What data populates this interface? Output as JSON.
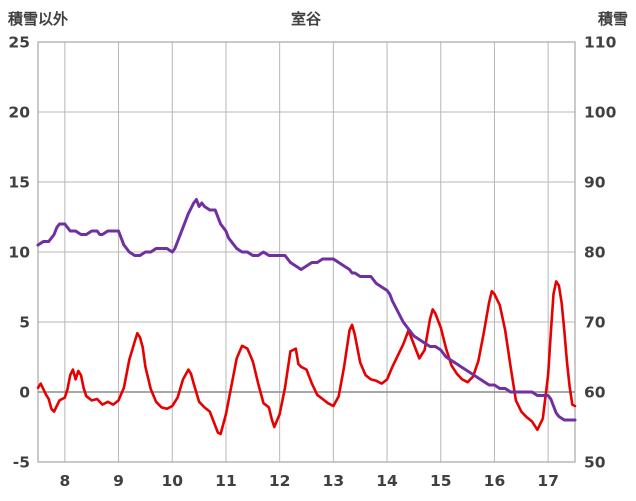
{
  "header": {
    "left_axis_title": "積雪以外",
    "chart_title": "室谷",
    "right_axis_title": "積雪"
  },
  "colors": {
    "red_series": "#e60000",
    "purple_series": "#7030a0",
    "grid": "#b7b7b7",
    "border": "#a6a6a6",
    "zero_line": "#8c8c8c",
    "text": "#404040"
  },
  "chart_data": {
    "type": "line",
    "title": "室谷",
    "xlim": [
      7.5,
      17.5
    ],
    "x_ticks": [
      8,
      9,
      10,
      11,
      12,
      13,
      14,
      15,
      16,
      17
    ],
    "grid": true,
    "legend": "none",
    "left_axis": {
      "label": "積雪以外",
      "lim": [
        -5,
        25
      ],
      "ticks": [
        -5,
        0,
        5,
        10,
        15,
        20,
        25
      ]
    },
    "right_axis": {
      "label": "積雪",
      "lim": [
        50,
        110
      ],
      "ticks": [
        50,
        60,
        70,
        80,
        90,
        100,
        110
      ]
    },
    "series": [
      {
        "name": "red-left-axis-series",
        "axis": "left",
        "color": "#e60000",
        "width": 2.6,
        "points": [
          [
            7.5,
            0.3
          ],
          [
            7.55,
            0.6
          ],
          [
            7.6,
            0.2
          ],
          [
            7.65,
            -0.2
          ],
          [
            7.7,
            -0.5
          ],
          [
            7.75,
            -1.2
          ],
          [
            7.8,
            -1.4
          ],
          [
            7.85,
            -1.0
          ],
          [
            7.9,
            -0.6
          ],
          [
            8.0,
            -0.4
          ],
          [
            8.05,
            0.2
          ],
          [
            8.1,
            1.2
          ],
          [
            8.15,
            1.6
          ],
          [
            8.2,
            0.9
          ],
          [
            8.25,
            1.5
          ],
          [
            8.3,
            1.2
          ],
          [
            8.35,
            0.3
          ],
          [
            8.4,
            -0.3
          ],
          [
            8.5,
            -0.6
          ],
          [
            8.6,
            -0.5
          ],
          [
            8.7,
            -0.9
          ],
          [
            8.8,
            -0.7
          ],
          [
            8.9,
            -0.9
          ],
          [
            9.0,
            -0.6
          ],
          [
            9.1,
            0.3
          ],
          [
            9.2,
            2.3
          ],
          [
            9.3,
            3.6
          ],
          [
            9.35,
            4.2
          ],
          [
            9.4,
            3.9
          ],
          [
            9.45,
            3.2
          ],
          [
            9.5,
            1.8
          ],
          [
            9.6,
            0.2
          ],
          [
            9.7,
            -0.7
          ],
          [
            9.8,
            -1.1
          ],
          [
            9.9,
            -1.2
          ],
          [
            10.0,
            -1.0
          ],
          [
            10.1,
            -0.4
          ],
          [
            10.2,
            0.9
          ],
          [
            10.3,
            1.6
          ],
          [
            10.35,
            1.3
          ],
          [
            10.4,
            0.6
          ],
          [
            10.5,
            -0.7
          ],
          [
            10.6,
            -1.1
          ],
          [
            10.7,
            -1.4
          ],
          [
            10.8,
            -2.4
          ],
          [
            10.85,
            -2.9
          ],
          [
            10.9,
            -3.0
          ],
          [
            11.0,
            -1.6
          ],
          [
            11.1,
            0.4
          ],
          [
            11.2,
            2.4
          ],
          [
            11.3,
            3.3
          ],
          [
            11.4,
            3.1
          ],
          [
            11.5,
            2.2
          ],
          [
            11.6,
            0.6
          ],
          [
            11.7,
            -0.8
          ],
          [
            11.8,
            -1.1
          ],
          [
            11.85,
            -1.9
          ],
          [
            11.9,
            -2.5
          ],
          [
            12.0,
            -1.6
          ],
          [
            12.1,
            0.3
          ],
          [
            12.2,
            2.9
          ],
          [
            12.3,
            3.1
          ],
          [
            12.35,
            2.0
          ],
          [
            12.4,
            1.8
          ],
          [
            12.5,
            1.6
          ],
          [
            12.6,
            0.6
          ],
          [
            12.7,
            -0.2
          ],
          [
            12.8,
            -0.5
          ],
          [
            12.9,
            -0.8
          ],
          [
            13.0,
            -1.0
          ],
          [
            13.1,
            -0.3
          ],
          [
            13.2,
            1.8
          ],
          [
            13.3,
            4.4
          ],
          [
            13.35,
            4.8
          ],
          [
            13.4,
            4.1
          ],
          [
            13.5,
            2.1
          ],
          [
            13.6,
            1.2
          ],
          [
            13.7,
            0.9
          ],
          [
            13.8,
            0.8
          ],
          [
            13.9,
            0.6
          ],
          [
            14.0,
            0.9
          ],
          [
            14.1,
            1.8
          ],
          [
            14.2,
            2.6
          ],
          [
            14.3,
            3.4
          ],
          [
            14.4,
            4.4
          ],
          [
            14.5,
            3.4
          ],
          [
            14.6,
            2.4
          ],
          [
            14.7,
            3.0
          ],
          [
            14.8,
            5.2
          ],
          [
            14.85,
            5.9
          ],
          [
            14.9,
            5.6
          ],
          [
            15.0,
            4.6
          ],
          [
            15.1,
            3.1
          ],
          [
            15.2,
            1.9
          ],
          [
            15.3,
            1.3
          ],
          [
            15.4,
            0.9
          ],
          [
            15.5,
            0.7
          ],
          [
            15.6,
            1.1
          ],
          [
            15.7,
            2.2
          ],
          [
            15.8,
            4.2
          ],
          [
            15.9,
            6.4
          ],
          [
            15.95,
            7.2
          ],
          [
            16.0,
            7.0
          ],
          [
            16.1,
            6.2
          ],
          [
            16.2,
            4.4
          ],
          [
            16.3,
            1.8
          ],
          [
            16.4,
            -0.6
          ],
          [
            16.5,
            -1.4
          ],
          [
            16.6,
            -1.8
          ],
          [
            16.7,
            -2.1
          ],
          [
            16.8,
            -2.7
          ],
          [
            16.9,
            -1.9
          ],
          [
            17.0,
            1.2
          ],
          [
            17.05,
            4.2
          ],
          [
            17.1,
            7.0
          ],
          [
            17.15,
            7.9
          ],
          [
            17.2,
            7.6
          ],
          [
            17.25,
            6.4
          ],
          [
            17.3,
            4.4
          ],
          [
            17.35,
            2.2
          ],
          [
            17.4,
            0.4
          ],
          [
            17.45,
            -0.9
          ],
          [
            17.5,
            -1.0
          ]
        ]
      },
      {
        "name": "purple-right-axis-series",
        "axis": "right",
        "color": "#7030a0",
        "width": 3,
        "points": [
          [
            7.5,
            81
          ],
          [
            7.6,
            81.5
          ],
          [
            7.7,
            81.5
          ],
          [
            7.75,
            82
          ],
          [
            7.8,
            82.5
          ],
          [
            7.85,
            83.5
          ],
          [
            7.9,
            84
          ],
          [
            8.0,
            84
          ],
          [
            8.05,
            83.5
          ],
          [
            8.1,
            83
          ],
          [
            8.2,
            83
          ],
          [
            8.3,
            82.5
          ],
          [
            8.4,
            82.5
          ],
          [
            8.5,
            83
          ],
          [
            8.6,
            83
          ],
          [
            8.65,
            82.5
          ],
          [
            8.7,
            82.5
          ],
          [
            8.8,
            83
          ],
          [
            8.9,
            83
          ],
          [
            9.0,
            83
          ],
          [
            9.05,
            82
          ],
          [
            9.1,
            81
          ],
          [
            9.15,
            80.5
          ],
          [
            9.2,
            80
          ],
          [
            9.3,
            79.5
          ],
          [
            9.4,
            79.5
          ],
          [
            9.5,
            80
          ],
          [
            9.6,
            80
          ],
          [
            9.7,
            80.5
          ],
          [
            9.8,
            80.5
          ],
          [
            9.9,
            80.5
          ],
          [
            10.0,
            80
          ],
          [
            10.05,
            80.5
          ],
          [
            10.1,
            81.5
          ],
          [
            10.2,
            83.5
          ],
          [
            10.3,
            85.5
          ],
          [
            10.4,
            87
          ],
          [
            10.45,
            87.5
          ],
          [
            10.5,
            86.5
          ],
          [
            10.55,
            87
          ],
          [
            10.6,
            86.5
          ],
          [
            10.7,
            86
          ],
          [
            10.8,
            86
          ],
          [
            10.85,
            85
          ],
          [
            10.9,
            84
          ],
          [
            11.0,
            83
          ],
          [
            11.05,
            82
          ],
          [
            11.1,
            81.5
          ],
          [
            11.2,
            80.5
          ],
          [
            11.3,
            80
          ],
          [
            11.4,
            80
          ],
          [
            11.5,
            79.5
          ],
          [
            11.6,
            79.5
          ],
          [
            11.7,
            80
          ],
          [
            11.8,
            79.5
          ],
          [
            11.9,
            79.5
          ],
          [
            12.0,
            79.5
          ],
          [
            12.1,
            79.5
          ],
          [
            12.2,
            78.5
          ],
          [
            12.3,
            78
          ],
          [
            12.4,
            77.5
          ],
          [
            12.5,
            78
          ],
          [
            12.6,
            78.5
          ],
          [
            12.7,
            78.5
          ],
          [
            12.8,
            79
          ],
          [
            12.9,
            79
          ],
          [
            13.0,
            79
          ],
          [
            13.1,
            78.5
          ],
          [
            13.2,
            78
          ],
          [
            13.3,
            77.5
          ],
          [
            13.35,
            77
          ],
          [
            13.4,
            77
          ],
          [
            13.5,
            76.5
          ],
          [
            13.6,
            76.5
          ],
          [
            13.7,
            76.5
          ],
          [
            13.8,
            75.5
          ],
          [
            13.9,
            75
          ],
          [
            14.0,
            74.5
          ],
          [
            14.05,
            74
          ],
          [
            14.1,
            73
          ],
          [
            14.2,
            71.5
          ],
          [
            14.3,
            70
          ],
          [
            14.4,
            69
          ],
          [
            14.5,
            68
          ],
          [
            14.6,
            67.5
          ],
          [
            14.7,
            67
          ],
          [
            14.8,
            66.5
          ],
          [
            14.9,
            66.5
          ],
          [
            15.0,
            66
          ],
          [
            15.05,
            65.5
          ],
          [
            15.1,
            65
          ],
          [
            15.2,
            64.5
          ],
          [
            15.3,
            64
          ],
          [
            15.4,
            63.5
          ],
          [
            15.5,
            63
          ],
          [
            15.6,
            62.5
          ],
          [
            15.7,
            62
          ],
          [
            15.8,
            61.5
          ],
          [
            15.9,
            61
          ],
          [
            16.0,
            61
          ],
          [
            16.1,
            60.5
          ],
          [
            16.2,
            60.5
          ],
          [
            16.3,
            60
          ],
          [
            16.4,
            60
          ],
          [
            16.5,
            60
          ],
          [
            16.6,
            60
          ],
          [
            16.7,
            60
          ],
          [
            16.8,
            59.5
          ],
          [
            16.9,
            59.5
          ],
          [
            17.0,
            59.5
          ],
          [
            17.05,
            59
          ],
          [
            17.1,
            58
          ],
          [
            17.15,
            57
          ],
          [
            17.2,
            56.5
          ],
          [
            17.3,
            56
          ],
          [
            17.4,
            56
          ],
          [
            17.5,
            56
          ]
        ]
      }
    ]
  }
}
